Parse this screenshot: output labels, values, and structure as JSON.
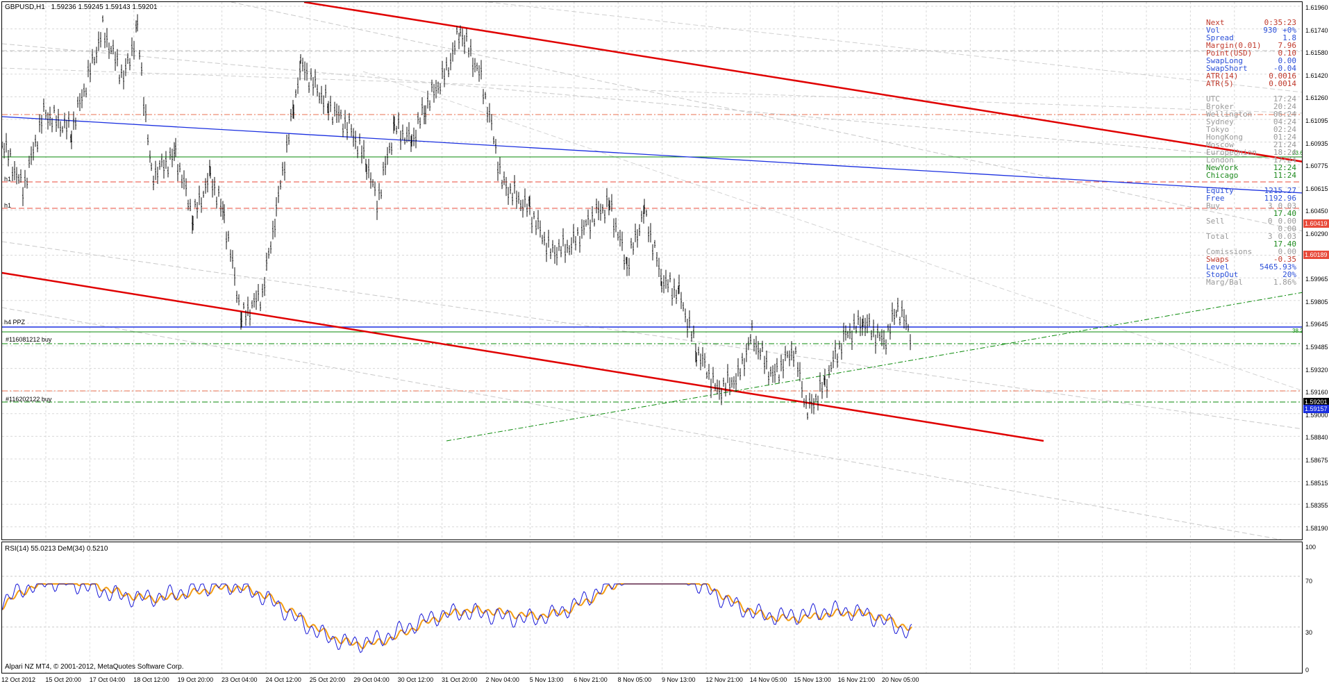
{
  "header": {
    "symbol_tf": "GBPUSD,H1",
    "ohlc": "1.59236 1.59245 1.59143 1.59201"
  },
  "price_axis": {
    "ticks": [
      "1.61960",
      "1.61740",
      "1.61580",
      "1.61420",
      "1.61260",
      "1.61095",
      "1.60935",
      "1.60775",
      "1.60615",
      "1.60450",
      "1.60290",
      "1.60130",
      "1.59965",
      "1.59805",
      "1.59645",
      "1.59485",
      "1.59320",
      "1.59160",
      "1.59000",
      "1.58840",
      "1.58675",
      "1.58515",
      "1.58355",
      "1.58190"
    ],
    "current_price": "1.59201",
    "tag_1": "1.59157",
    "tag_2": "1.60419",
    "tag_3": "1.60189"
  },
  "line_labels": {
    "h1_a": "h1",
    "h1_b": "h1",
    "h4_ppz": "h4 PPZ",
    "order_1": "#116081212 buy",
    "order_2": "#116202122 buy",
    "fib_1": "23.6",
    "fib_2": "38.2"
  },
  "info_panel": [
    {
      "k": "Next",
      "m": "",
      "v": "0:35:23",
      "color": "#c0392b"
    },
    {
      "k": "Vol",
      "m": "930",
      "v": "+0%",
      "color": "#2b4fd8"
    },
    {
      "k": "Spread",
      "m": "",
      "v": "1.8",
      "color": "#2b4fd8"
    },
    {
      "k": "Margin(0.01)",
      "m": "",
      "v": "7.96",
      "color": "#c0392b"
    },
    {
      "k": "Point(USD)",
      "m": "",
      "v": "0.10",
      "color": "#c0392b"
    },
    {
      "k": "SwapLong",
      "m": "",
      "v": "0.00",
      "color": "#2b4fd8"
    },
    {
      "k": "SwapShort",
      "m": "",
      "v": "-0.04",
      "color": "#2b4fd8"
    },
    {
      "k": "ATR(14)",
      "m": "",
      "v": "0.0016",
      "color": "#c0392b"
    },
    {
      "k": "ATR(5)",
      "m": "",
      "v": "0.0014",
      "color": "#c0392b"
    },
    {
      "k": "",
      "m": "",
      "v": "",
      "color": "#888"
    },
    {
      "k": "UTC",
      "m": "",
      "v": "17:24",
      "color": "#999"
    },
    {
      "k": "Broker",
      "m": "",
      "v": "20:24",
      "color": "#999"
    },
    {
      "k": "Wellington",
      "m": "",
      "v": "06:24",
      "color": "#999"
    },
    {
      "k": "Sydney",
      "m": "",
      "v": "04:24",
      "color": "#999"
    },
    {
      "k": "Tokyo",
      "m": "",
      "v": "02:24",
      "color": "#999"
    },
    {
      "k": "HongKong",
      "m": "",
      "v": "01:24",
      "color": "#999"
    },
    {
      "k": "Moscow",
      "m": "",
      "v": "21:24",
      "color": "#999"
    },
    {
      "k": "EuropeUnion",
      "m": "",
      "v": "18:24",
      "color": "#999"
    },
    {
      "k": "London",
      "m": "",
      "v": "17:24",
      "color": "#999"
    },
    {
      "k": "NewYork",
      "m": "",
      "v": "12:24",
      "color": "#1e8a1e"
    },
    {
      "k": "Chicago",
      "m": "",
      "v": "11:24",
      "color": "#1e8a1e"
    },
    {
      "k": "",
      "m": "",
      "v": "",
      "color": "#888"
    },
    {
      "k": "Equity",
      "m": "",
      "v": "1215.27",
      "color": "#2b4fd8"
    },
    {
      "k": "Free",
      "m": "",
      "v": "1192.96",
      "color": "#2b4fd8"
    },
    {
      "k": "Buy",
      "m": "3",
      "v": "0.03",
      "color": "#999"
    },
    {
      "k": "",
      "m": "",
      "v": "17.40",
      "color": "#1e8a1e"
    },
    {
      "k": "Sell",
      "m": "0",
      "v": "0.00",
      "color": "#999"
    },
    {
      "k": "",
      "m": "",
      "v": "0.00",
      "color": "#999"
    },
    {
      "k": "Total",
      "m": "3",
      "v": "0.03",
      "color": "#999"
    },
    {
      "k": "",
      "m": "",
      "v": "17.40",
      "color": "#1e8a1e"
    },
    {
      "k": "Comissions",
      "m": "",
      "v": "0.00",
      "color": "#999"
    },
    {
      "k": "Swaps",
      "m": "",
      "v": "-0.35",
      "color": "#c0392b"
    },
    {
      "k": "Level",
      "m": "",
      "v": "5465.93%",
      "color": "#2b4fd8"
    },
    {
      "k": "StopOut",
      "m": "",
      "v": "20%",
      "color": "#2b4fd8"
    },
    {
      "k": "Marg/Bal",
      "m": "",
      "v": "1.86%",
      "color": "#999"
    }
  ],
  "sub_window": {
    "header": "RSI(14) 55.0213  DeM(34) 0.5210",
    "ticks": [
      "100",
      "70",
      "30",
      "0"
    ]
  },
  "time_axis": [
    "12 Oct 2012",
    "15 Oct 20:00",
    "17 Oct 04:00",
    "18 Oct 12:00",
    "19 Oct 20:00",
    "23 Oct 04:00",
    "24 Oct 12:00",
    "25 Oct 20:00",
    "29 Oct 04:00",
    "30 Oct 12:00",
    "31 Oct 20:00",
    "2 Nov 04:00",
    "5 Nov 13:00",
    "6 Nov 21:00",
    "8 Nov 05:00",
    "9 Nov 13:00",
    "12 Nov 21:00",
    "14 Nov 05:00",
    "15 Nov 13:00",
    "16 Nov 21:00",
    "20 Nov 05:00"
  ],
  "copyright": "Alpari NZ MT4, © 2001-2012, MetaQuotes Software Corp.",
  "colors": {
    "red_channel": "#e00000",
    "blue_trend": "#1a2fe0",
    "green_line": "#0a8a0a",
    "price_bars": "#000000",
    "rsi": "#1a1ad8",
    "dem": "#f39c12"
  }
}
